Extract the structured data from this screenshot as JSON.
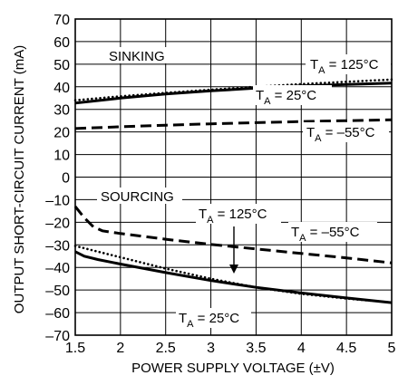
{
  "chart_data": {
    "type": "line",
    "xlabel": "POWER SUPPLY VOLTAGE (±V)",
    "ylabel": "OUTPUT SHORT-CIRCUIT CURRENT (mA)",
    "xlim": [
      1.5,
      5
    ],
    "ylim": [
      -70,
      70
    ],
    "grid": true,
    "x_ticks": [
      "1.5",
      "2",
      "2.5",
      "3",
      "3.5",
      "4",
      "4.5",
      "5"
    ],
    "y_ticks": [
      "70",
      "60",
      "50",
      "40",
      "30",
      "20",
      "10",
      "0",
      "–10",
      "–20",
      "–30",
      "–40",
      "–50",
      "–60",
      "–70"
    ],
    "series": [
      {
        "group": "sinking",
        "temp_label": "125°C",
        "style": "dotted",
        "x": [
          1.5,
          2,
          2.5,
          3,
          3.5,
          4,
          4.5,
          5
        ],
        "y": [
          34,
          35.8,
          37.3,
          38.7,
          40,
          41.2,
          42.2,
          43.2
        ]
      },
      {
        "group": "sinking",
        "temp_label": "25°C",
        "style": "solid",
        "x": [
          1.5,
          2,
          2.5,
          3,
          3.5,
          4,
          4.5,
          5
        ],
        "y": [
          32.8,
          35,
          36.8,
          38.2,
          39.4,
          40.4,
          41,
          41.6
        ]
      },
      {
        "group": "sinking",
        "temp_label": "–55°C",
        "style": "dashed",
        "x": [
          1.5,
          2,
          2.5,
          3,
          3.5,
          4,
          4.5,
          5
        ],
        "y": [
          21.5,
          22.3,
          23,
          23.6,
          24.1,
          24.6,
          25,
          25.4
        ]
      },
      {
        "group": "sourcing",
        "temp_label": "–55°C",
        "style": "dashed",
        "x": [
          1.5,
          1.6,
          1.7,
          1.8,
          2,
          2.5,
          3,
          3.5,
          4,
          4.5,
          5
        ],
        "y": [
          -13,
          -18,
          -22,
          -23.8,
          -25,
          -27.5,
          -29.8,
          -31.8,
          -33.8,
          -35.8,
          -38
        ]
      },
      {
        "group": "sourcing",
        "temp_label": "125°C",
        "style": "dotted",
        "x": [
          1.5,
          1.75,
          2,
          2.5,
          3,
          3.5,
          4,
          4.5,
          5
        ],
        "y": [
          -30.5,
          -33,
          -35.5,
          -40.5,
          -45,
          -48.8,
          -51.7,
          -53.8,
          -55.5
        ]
      },
      {
        "group": "sourcing",
        "temp_label": "25°C",
        "style": "solid",
        "x": [
          1.5,
          1.6,
          1.75,
          2,
          2.5,
          3,
          3.5,
          4,
          4.5,
          5
        ],
        "y": [
          -33,
          -35,
          -36.5,
          -38.5,
          -42.3,
          -45.8,
          -48.8,
          -51.3,
          -53.5,
          -55.6
        ]
      }
    ],
    "annotations": {
      "sinking": "SINKING",
      "sourcing": "SOURCING",
      "ta_prefix": "T",
      "ta_subscript": "A",
      "ta_equals": " = ",
      "sink_125": "125°C",
      "sink_25": "25°C",
      "sink_m55": "–55°C",
      "src_125": "125°C",
      "src_m55": "–55°C",
      "src_25": "25°C"
    }
  }
}
